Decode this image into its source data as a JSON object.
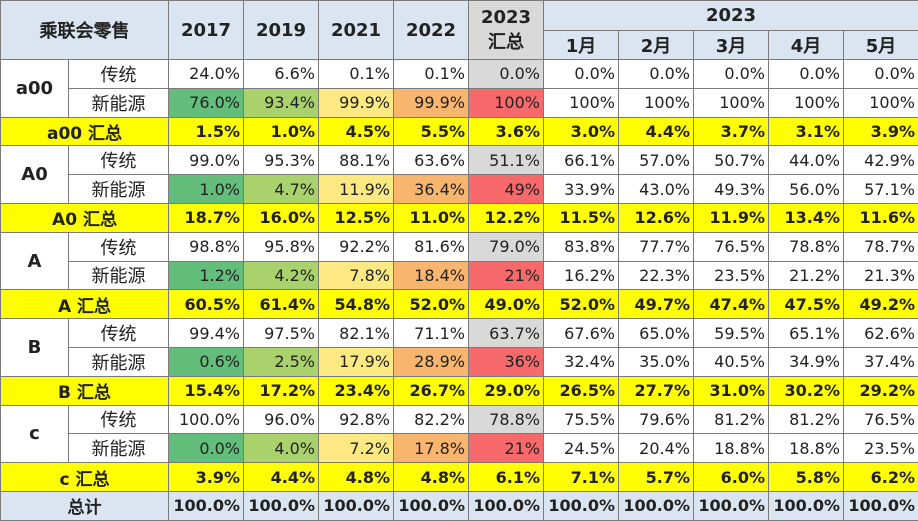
{
  "chart_data": {
    "type": "table",
    "title": "乘联会零售",
    "headers": {
      "corner": "乘联会零售",
      "years": [
        "2017",
        "2019",
        "2021",
        "2022"
      ],
      "sum2023_line1": "2023",
      "sum2023_line2": "汇总",
      "month_group": "2023",
      "months": [
        "1月",
        "2月",
        "3月",
        "4月",
        "5月"
      ]
    },
    "groups": [
      {
        "name": "a00",
        "rows": [
          {
            "label": "传统",
            "values": [
              "24.0%",
              "6.6%",
              "0.1%",
              "0.1%",
              "0.0%",
              "0.0%",
              "0.0%",
              "0.0%",
              "0.0%",
              "0.0%"
            ]
          },
          {
            "label": "新能源",
            "values": [
              "76.0%",
              "93.4%",
              "99.9%",
              "99.9%",
              "100%",
              "100%",
              "100%",
              "100%",
              "100%",
              "100%"
            ]
          }
        ],
        "summary": {
          "label": "a00 汇总",
          "values": [
            "1.5%",
            "1.0%",
            "4.5%",
            "5.5%",
            "3.6%",
            "3.0%",
            "4.4%",
            "3.7%",
            "3.1%",
            "3.9%"
          ]
        }
      },
      {
        "name": "A0",
        "rows": [
          {
            "label": "传统",
            "values": [
              "99.0%",
              "95.3%",
              "88.1%",
              "63.6%",
              "51.1%",
              "66.1%",
              "57.0%",
              "50.7%",
              "44.0%",
              "42.9%"
            ]
          },
          {
            "label": "新能源",
            "values": [
              "1.0%",
              "4.7%",
              "11.9%",
              "36.4%",
              "49%",
              "33.9%",
              "43.0%",
              "49.3%",
              "56.0%",
              "57.1%"
            ]
          }
        ],
        "summary": {
          "label": "A0 汇总",
          "values": [
            "18.7%",
            "16.0%",
            "12.5%",
            "11.0%",
            "12.2%",
            "11.5%",
            "12.6%",
            "11.9%",
            "13.4%",
            "11.6%"
          ]
        }
      },
      {
        "name": "A",
        "rows": [
          {
            "label": "传统",
            "values": [
              "98.8%",
              "95.8%",
              "92.2%",
              "81.6%",
              "79.0%",
              "83.8%",
              "77.7%",
              "76.5%",
              "78.8%",
              "78.7%"
            ]
          },
          {
            "label": "新能源",
            "values": [
              "1.2%",
              "4.2%",
              "7.8%",
              "18.4%",
              "21%",
              "16.2%",
              "22.3%",
              "23.5%",
              "21.2%",
              "21.3%"
            ]
          }
        ],
        "summary": {
          "label": "A 汇总",
          "values": [
            "60.5%",
            "61.4%",
            "54.8%",
            "52.0%",
            "49.0%",
            "52.0%",
            "49.7%",
            "47.4%",
            "47.5%",
            "49.2%"
          ]
        }
      },
      {
        "name": "B",
        "rows": [
          {
            "label": "传统",
            "values": [
              "99.4%",
              "97.5%",
              "82.1%",
              "71.1%",
              "63.7%",
              "67.6%",
              "65.0%",
              "59.5%",
              "65.1%",
              "62.6%"
            ]
          },
          {
            "label": "新能源",
            "values": [
              "0.6%",
              "2.5%",
              "17.9%",
              "28.9%",
              "36%",
              "32.4%",
              "35.0%",
              "40.5%",
              "34.9%",
              "37.4%"
            ]
          }
        ],
        "summary": {
          "label": "B 汇总",
          "values": [
            "15.4%",
            "17.2%",
            "23.4%",
            "26.7%",
            "29.0%",
            "26.5%",
            "27.7%",
            "31.0%",
            "30.2%",
            "29.2%"
          ]
        }
      },
      {
        "name": "c",
        "rows": [
          {
            "label": "传统",
            "values": [
              "100.0%",
              "96.0%",
              "92.8%",
              "82.2%",
              "78.8%",
              "75.5%",
              "79.6%",
              "81.2%",
              "81.2%",
              "76.5%"
            ]
          },
          {
            "label": "新能源",
            "values": [
              "0.0%",
              "4.0%",
              "7.2%",
              "17.8%",
              "21%",
              "24.5%",
              "20.4%",
              "18.8%",
              "18.8%",
              "23.5%"
            ]
          }
        ],
        "summary": {
          "label": "c 汇总",
          "values": [
            "3.9%",
            "4.4%",
            "4.8%",
            "4.8%",
            "6.1%",
            "7.1%",
            "5.7%",
            "6.0%",
            "5.8%",
            "6.2%"
          ]
        }
      }
    ],
    "total": {
      "label": "总计",
      "values": [
        "100.0%",
        "100.0%",
        "100.0%",
        "100.0%",
        "100.0%",
        "100.0%",
        "100.0%",
        "100.0%",
        "100.0%",
        "100.0%"
      ]
    },
    "nev_highlight_colors": [
      "#63be7b",
      "#a9d26d",
      "#fde981",
      "#f8b56e",
      "#f8696b"
    ]
  }
}
